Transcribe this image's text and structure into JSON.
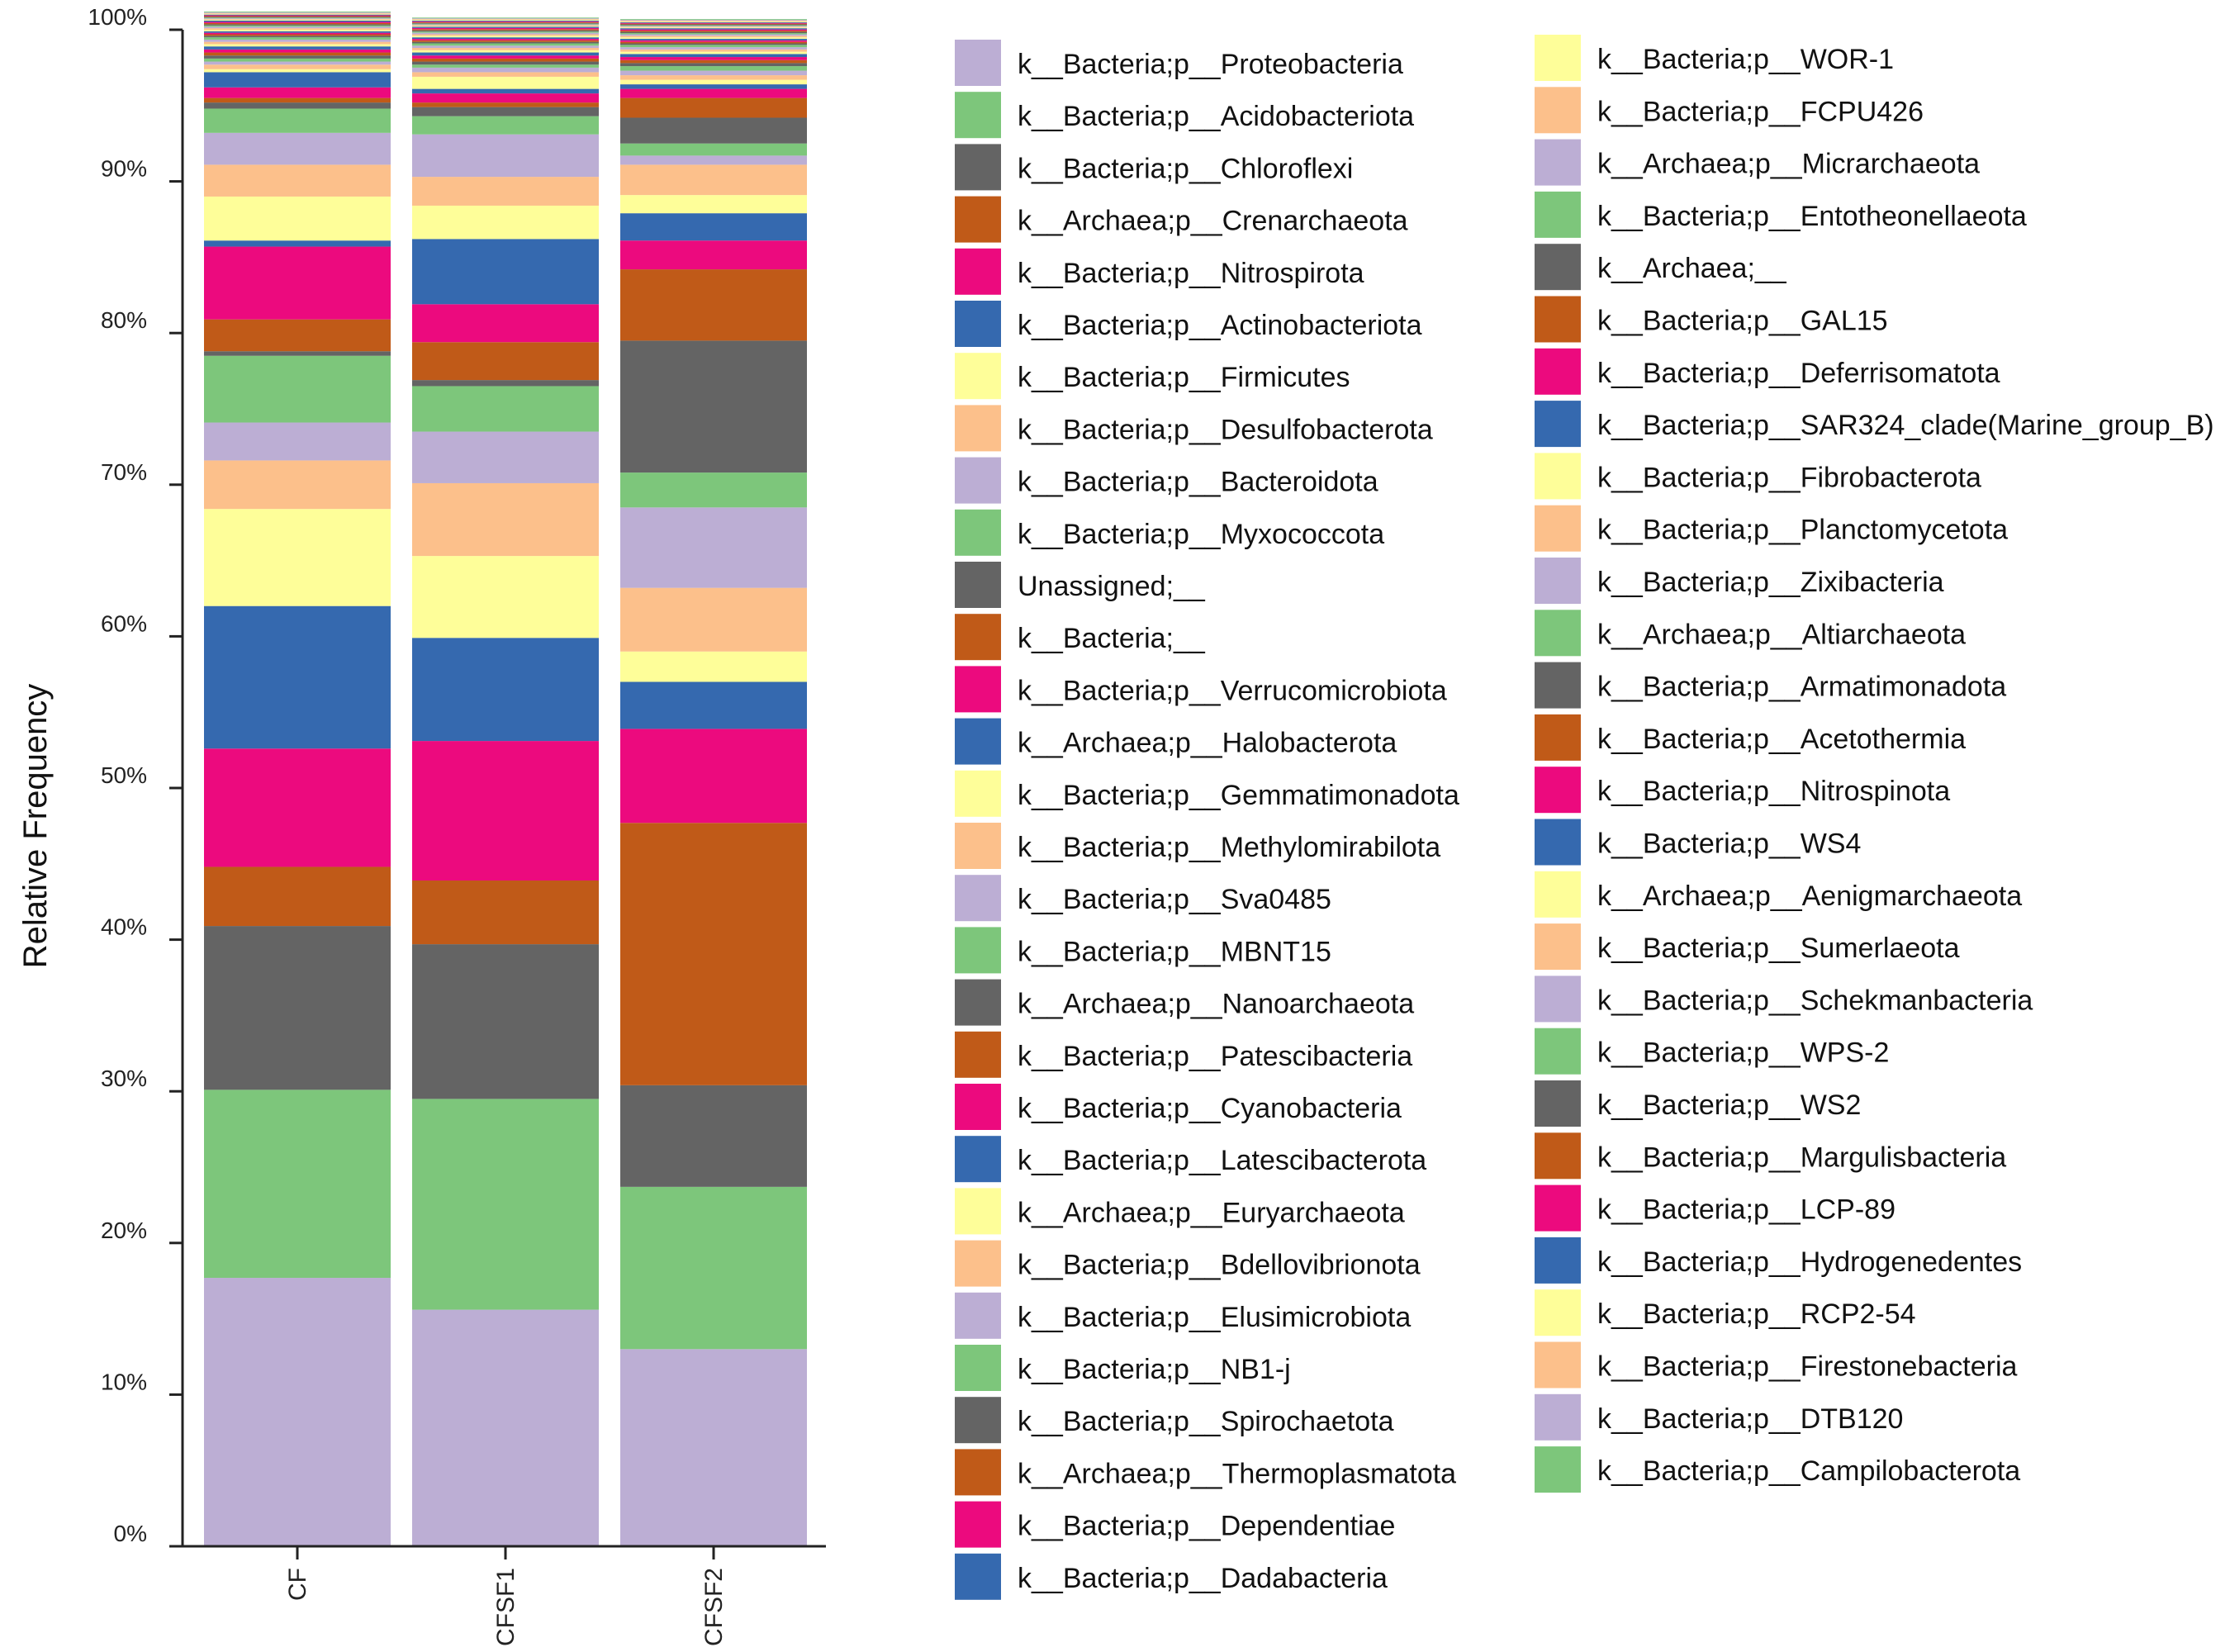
{
  "chart_data": {
    "type": "bar",
    "stacked": true,
    "title": "",
    "xlabel": "",
    "ylabel": "Relative Frequency",
    "ylim": [
      0,
      100
    ],
    "yticks": [
      "0%",
      "10%",
      "20%",
      "30%",
      "40%",
      "50%",
      "60%",
      "70%",
      "80%",
      "90%",
      "100%"
    ],
    "categories": [
      "CF",
      "CFSF1",
      "CFSF2"
    ],
    "palette": [
      "#bcaed4",
      "#7dc67b",
      "#646464",
      "#c05a18",
      "#ec0a7e",
      "#3569af",
      "#fefe99",
      "#fcc08b"
    ],
    "legend_position": "right",
    "series": [
      {
        "name": "k__Bacteria;p__Proteobacteria",
        "values": [
          17.7,
          15.6,
          13.0
        ]
      },
      {
        "name": "k__Bacteria;p__Acidobacteriota",
        "values": [
          12.4,
          13.9,
          10.7
        ]
      },
      {
        "name": "k__Bacteria;p__Chloroflexi",
        "values": [
          10.8,
          10.2,
          6.7
        ]
      },
      {
        "name": "k__Archaea;p__Crenarchaeota",
        "values": [
          3.9,
          4.2,
          17.3
        ]
      },
      {
        "name": "k__Bacteria;p__Nitrospirota",
        "values": [
          7.8,
          9.2,
          6.2
        ]
      },
      {
        "name": "k__Bacteria;p__Actinobacteriota",
        "values": [
          9.4,
          6.8,
          3.1
        ]
      },
      {
        "name": "k__Bacteria;p__Firmicutes",
        "values": [
          6.4,
          5.4,
          2.0
        ]
      },
      {
        "name": "k__Bacteria;p__Desulfobacterota",
        "values": [
          3.2,
          4.8,
          4.2
        ]
      },
      {
        "name": "k__Bacteria;p__Bacteroidota",
        "values": [
          2.5,
          3.4,
          5.3
        ]
      },
      {
        "name": "k__Bacteria;p__Myxococcota",
        "values": [
          4.4,
          3.0,
          2.3
        ]
      },
      {
        "name": "Unassigned;__",
        "values": [
          0.3,
          0.4,
          8.7
        ]
      },
      {
        "name": "k__Bacteria;__",
        "values": [
          2.1,
          2.5,
          4.7
        ]
      },
      {
        "name": "k__Bacteria;p__Verrucomicrobiota",
        "values": [
          4.8,
          2.5,
          1.9
        ]
      },
      {
        "name": "k__Archaea;p__Halobacterota",
        "values": [
          0.4,
          4.3,
          1.8
        ]
      },
      {
        "name": "k__Bacteria;p__Gemmatimonadota",
        "values": [
          2.9,
          2.2,
          1.2
        ]
      },
      {
        "name": "k__Bacteria;p__Methylomirabilota",
        "values": [
          2.1,
          1.9,
          2.0
        ]
      },
      {
        "name": "k__Bacteria;p__Sva0485",
        "values": [
          2.1,
          2.8,
          0.6
        ]
      },
      {
        "name": "k__Bacteria;p__MBNT15",
        "values": [
          1.6,
          1.2,
          0.8
        ]
      },
      {
        "name": "k__Archaea;p__Nanoarchaeota",
        "values": [
          0.4,
          0.6,
          1.7
        ]
      },
      {
        "name": "k__Bacteria;p__Patescibacteria",
        "values": [
          0.3,
          0.3,
          1.3
        ]
      },
      {
        "name": "k__Bacteria;p__Cyanobacteria",
        "values": [
          0.7,
          0.6,
          0.6
        ]
      },
      {
        "name": "k__Bacteria;p__Latescibacterota",
        "values": [
          1.0,
          0.3,
          0.3
        ]
      },
      {
        "name": "k__Archaea;p__Euryarchaeota",
        "values": [
          0.2,
          0.8,
          0.3
        ]
      },
      {
        "name": "k__Bacteria;p__Bdellovibrionota",
        "values": [
          0.3,
          0.3,
          0.3
        ]
      },
      {
        "name": "k__Bacteria;p__Elusimicrobiota",
        "values": [
          0.2,
          0.3,
          0.3
        ]
      },
      {
        "name": "k__Bacteria;p__NB1-j",
        "values": [
          0.2,
          0.2,
          0.3
        ]
      },
      {
        "name": "k__Bacteria;p__Spirochaetota",
        "values": [
          0.2,
          0.2,
          0.2
        ]
      },
      {
        "name": "k__Archaea;p__Thermoplasmatota",
        "values": [
          0.2,
          0.2,
          0.2
        ]
      },
      {
        "name": "k__Bacteria;p__Dependentiae",
        "values": [
          0.2,
          0.2,
          0.2
        ]
      },
      {
        "name": "k__Bacteria;p__Dadabacteria",
        "values": [
          0.2,
          0.2,
          0.2
        ]
      },
      {
        "name": "k__Bacteria;p__WOR-1",
        "values": [
          0.15,
          0.15,
          0.15
        ]
      },
      {
        "name": "k__Bacteria;p__FCPU426",
        "values": [
          0.15,
          0.15,
          0.15
        ]
      },
      {
        "name": "k__Archaea;p__Micrarchaeota",
        "values": [
          0.15,
          0.15,
          0.15
        ]
      },
      {
        "name": "k__Bacteria;p__Entotheonellaeota",
        "values": [
          0.15,
          0.15,
          0.15
        ]
      },
      {
        "name": "k__Archaea;__",
        "values": [
          0.1,
          0.1,
          0.1
        ]
      },
      {
        "name": "k__Bacteria;p__GAL15",
        "values": [
          0.1,
          0.1,
          0.1
        ]
      },
      {
        "name": "k__Bacteria;p__Deferrisomatota",
        "values": [
          0.1,
          0.1,
          0.1
        ]
      },
      {
        "name": "k__Bacteria;p__SAR324_clade(Marine_group_B)",
        "values": [
          0.1,
          0.1,
          0.1
        ]
      },
      {
        "name": "k__Bacteria;p__Fibrobacterota",
        "values": [
          0.1,
          0.1,
          0.1
        ]
      },
      {
        "name": "k__Bacteria;p__Planctomycetota",
        "values": [
          0.1,
          0.1,
          0.1
        ]
      },
      {
        "name": "k__Bacteria;p__Zixibacteria",
        "values": [
          0.1,
          0.1,
          0.1
        ]
      },
      {
        "name": "k__Archaea;p__Altiarchaeota",
        "values": [
          0.08,
          0.08,
          0.08
        ]
      },
      {
        "name": "k__Bacteria;p__Armatimonadota",
        "values": [
          0.08,
          0.08,
          0.08
        ]
      },
      {
        "name": "k__Bacteria;p__Acetothermia",
        "values": [
          0.08,
          0.08,
          0.08
        ]
      },
      {
        "name": "k__Bacteria;p__Nitrospinota",
        "values": [
          0.08,
          0.08,
          0.08
        ]
      },
      {
        "name": "k__Bacteria;p__WS4",
        "values": [
          0.08,
          0.08,
          0.08
        ]
      },
      {
        "name": "k__Archaea;p__Aenigmarchaeota",
        "values": [
          0.05,
          0.05,
          0.05
        ]
      },
      {
        "name": "k__Bacteria;p__Sumerlaeota",
        "values": [
          0.05,
          0.05,
          0.05
        ]
      },
      {
        "name": "k__Bacteria;p__Schekmanbacteria",
        "values": [
          0.05,
          0.05,
          0.05
        ]
      },
      {
        "name": "k__Bacteria;p__WPS-2",
        "values": [
          0.05,
          0.05,
          0.05
        ]
      },
      {
        "name": "k__Bacteria;p__WS2",
        "values": [
          0.05,
          0.05,
          0.05
        ]
      },
      {
        "name": "k__Bacteria;p__Margulisbacteria",
        "values": [
          0.05,
          0.05,
          0.05
        ]
      },
      {
        "name": "k__Bacteria;p__LCP-89",
        "values": [
          0.05,
          0.05,
          0.05
        ]
      },
      {
        "name": "k__Bacteria;p__Hydrogenedentes",
        "values": [
          0.05,
          0.05,
          0.05
        ]
      },
      {
        "name": "k__Bacteria;p__RCP2-54",
        "values": [
          0.05,
          0.05,
          0.05
        ]
      },
      {
        "name": "k__Bacteria;p__Firestonebacteria",
        "values": [
          0.05,
          0.05,
          0.05
        ]
      },
      {
        "name": "k__Bacteria;p__DTB120",
        "values": [
          0.05,
          0.05,
          0.05
        ]
      },
      {
        "name": "k__Bacteria;p__Campilobacterota",
        "values": [
          0.05,
          0.05,
          0.05
        ]
      }
    ]
  }
}
